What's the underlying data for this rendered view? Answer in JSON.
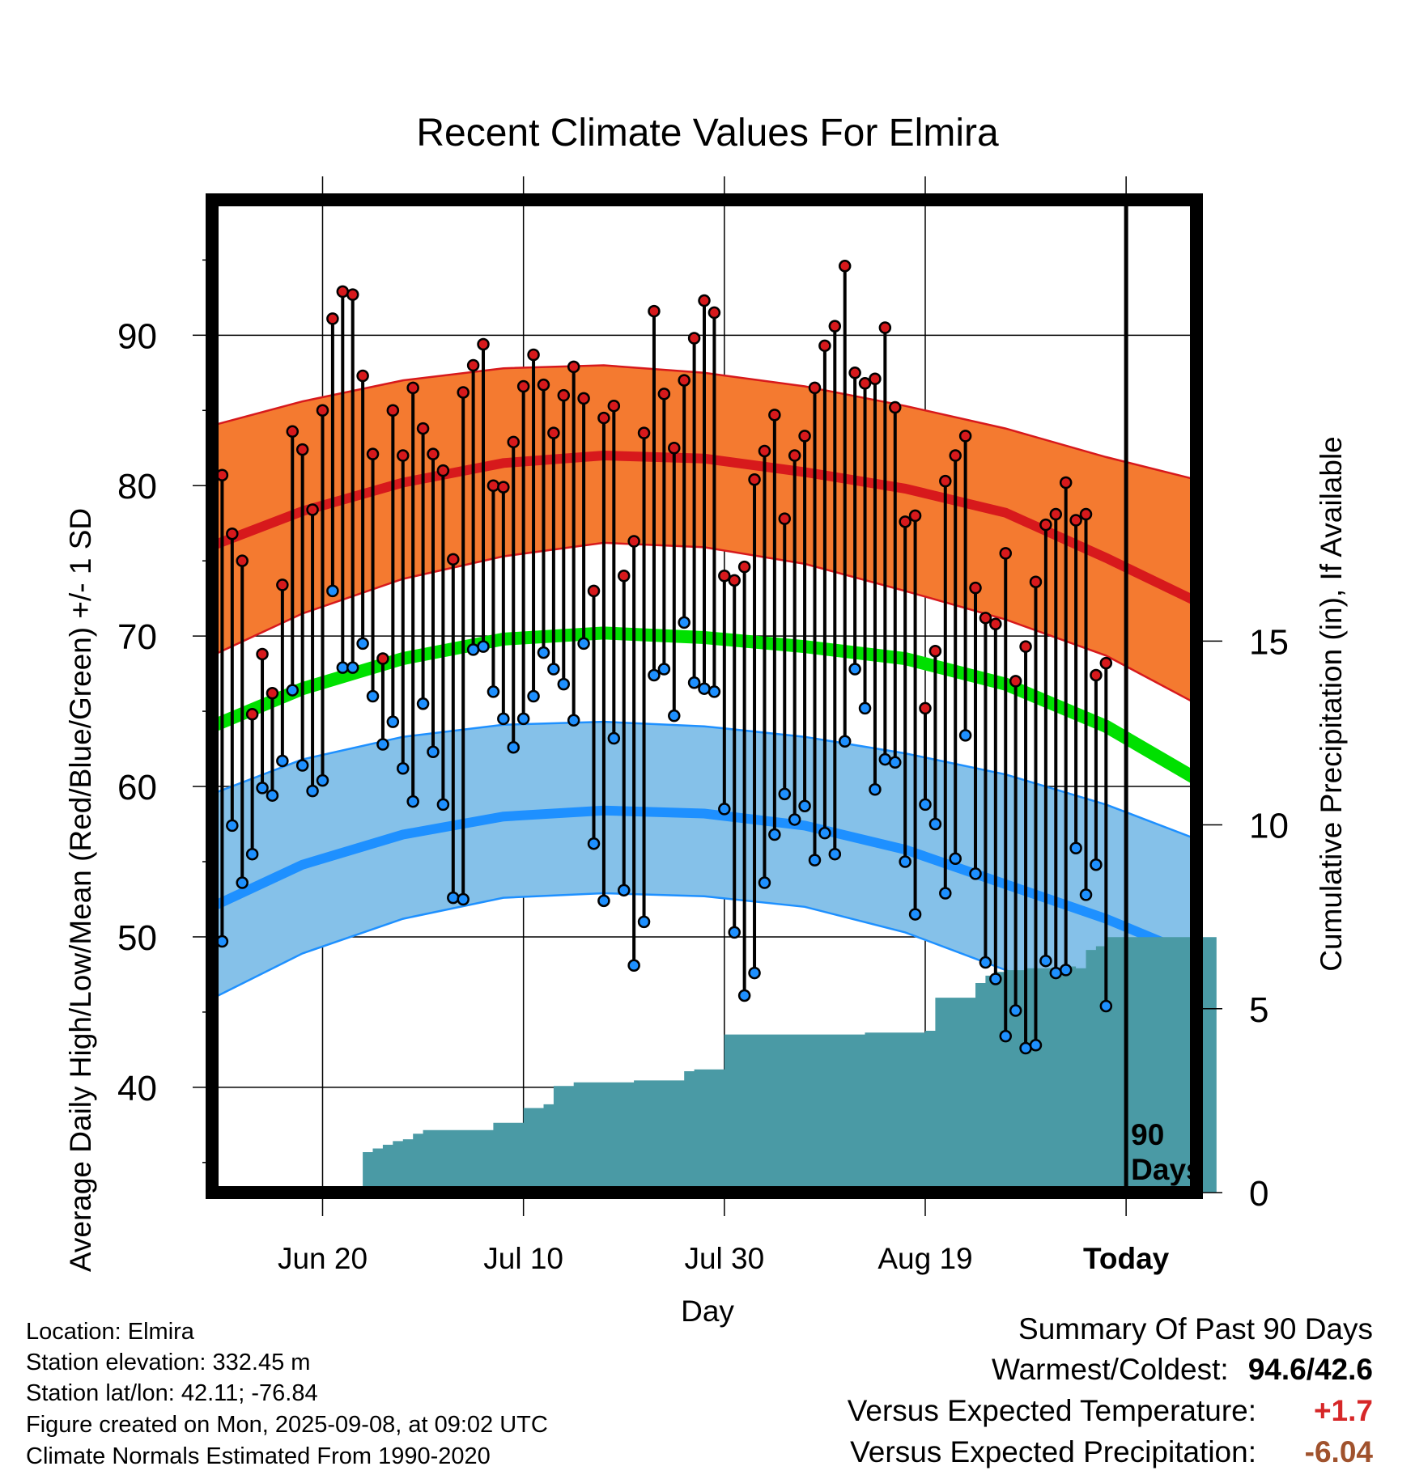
{
  "colors": {
    "high": "#d7191c",
    "low": "#1e90ff",
    "mean": "#00e000",
    "high_band": "#f47a30",
    "low_band": "#85c1e9",
    "precip": "#4a9aa5"
  },
  "chart_data": {
    "type": "line",
    "title": "Recent Climate Values For Elmira",
    "xlabel": "Day",
    "ylabel": "Average Daily High/Low/Mean (Red/Blue/Green) +/- 1 SD",
    "y2label": "Cumulative Precipitation (in), If Available",
    "ylim": [
      33,
      99
    ],
    "y2lim": [
      0,
      27
    ],
    "xlim": [
      -89,
      9
    ],
    "y_ticks": [
      40,
      50,
      60,
      70,
      80,
      90
    ],
    "y2_ticks": [
      0,
      5,
      10,
      15
    ],
    "x_ticks": [
      {
        "day": -78,
        "label": "Jun 20"
      },
      {
        "day": -58,
        "label": "Jul 10"
      },
      {
        "day": -38,
        "label": "Jul 30"
      },
      {
        "day": -18,
        "label": "Aug 19"
      },
      {
        "day": 2,
        "label": "Today"
      }
    ],
    "today_marker": {
      "day": 2,
      "label_line1": "90",
      "label_line2": "Days"
    },
    "normals": {
      "x": [
        -89,
        -80,
        -70,
        -60,
        -50,
        -40,
        -30,
        -20,
        -10,
        0,
        9
      ],
      "high_mean": [
        76.0,
        78.3,
        80.2,
        81.5,
        82.0,
        81.8,
        80.9,
        79.8,
        78.2,
        75.2,
        72.3
      ],
      "high_upper": [
        84.0,
        85.6,
        87.0,
        87.8,
        88.0,
        87.5,
        86.6,
        85.3,
        83.8,
        81.9,
        80.4
      ],
      "high_lower": [
        68.7,
        71.5,
        73.8,
        75.3,
        76.2,
        75.9,
        74.8,
        73.0,
        71.1,
        68.7,
        65.5
      ],
      "low_mean": [
        52.0,
        54.8,
        56.8,
        58.0,
        58.4,
        58.2,
        57.4,
        55.8,
        53.5,
        51.2,
        48.7
      ],
      "low_upper": [
        59.5,
        61.8,
        63.3,
        64.1,
        64.3,
        64.0,
        63.3,
        62.2,
        60.8,
        58.8,
        56.5
      ],
      "low_lower": [
        45.9,
        48.9,
        51.2,
        52.6,
        52.9,
        52.7,
        52.0,
        50.3,
        47.8,
        45.0,
        42.2
      ],
      "mean": [
        64.0,
        66.5,
        68.5,
        69.8,
        70.2,
        69.9,
        69.3,
        68.5,
        66.8,
        64.0,
        60.5
      ]
    },
    "daily": {
      "start_day": -89,
      "high": [
        76.0,
        80.7,
        76.8,
        75.0,
        64.8,
        68.8,
        66.2,
        73.4,
        83.6,
        82.4,
        78.4,
        85.0,
        91.1,
        92.9,
        92.7,
        87.3,
        82.1,
        68.5,
        85.0,
        82.0,
        86.5,
        83.8,
        82.1,
        81.0,
        75.1,
        86.2,
        88.0,
        89.4,
        80.0,
        79.9,
        82.9,
        86.6,
        88.7,
        86.7,
        83.5,
        86.0,
        87.9,
        85.8,
        73.0,
        84.5,
        85.3,
        74.0,
        76.3,
        83.5,
        91.6,
        86.1,
        82.5,
        87.0,
        89.8,
        92.3,
        91.5,
        74.0,
        73.7,
        74.6,
        80.4,
        82.3,
        84.7,
        77.8,
        82.0,
        83.3,
        86.5,
        89.3,
        90.6,
        94.6,
        87.5,
        86.8,
        87.1,
        90.5,
        85.2,
        77.6,
        78.0,
        65.2,
        69.0,
        80.3,
        82.0,
        83.3,
        73.2,
        71.2,
        70.8,
        75.5,
        67.0,
        69.3,
        73.6,
        77.4,
        78.1,
        80.2,
        77.7,
        78.1,
        67.4,
        68.2
      ],
      "low": [
        56.5,
        49.7,
        57.4,
        53.6,
        55.5,
        59.9,
        59.4,
        61.7,
        66.4,
        61.4,
        59.7,
        60.4,
        73.0,
        67.9,
        67.9,
        69.5,
        66.0,
        62.8,
        64.3,
        61.2,
        59.0,
        65.5,
        62.3,
        58.8,
        52.6,
        52.5,
        69.1,
        69.3,
        66.3,
        64.5,
        62.6,
        64.5,
        66.0,
        68.9,
        67.8,
        66.8,
        64.4,
        69.5,
        56.2,
        52.4,
        63.2,
        53.1,
        48.1,
        51.0,
        67.4,
        67.8,
        64.7,
        70.9,
        66.9,
        66.5,
        66.3,
        58.5,
        50.3,
        46.1,
        47.6,
        53.6,
        56.8,
        59.5,
        57.8,
        58.7,
        55.1,
        56.9,
        55.5,
        63.0,
        67.8,
        65.2,
        59.8,
        61.8,
        61.6,
        55.0,
        51.5,
        58.8,
        57.5,
        52.9,
        55.2,
        63.4,
        54.2,
        48.3,
        47.2,
        43.4,
        45.1,
        42.6,
        42.8,
        48.4,
        47.6,
        47.8,
        55.9,
        52.8,
        54.8,
        45.4
      ]
    },
    "cumulative_precip": [
      0,
      0,
      0,
      0,
      0,
      0,
      0,
      0,
      0,
      0,
      0,
      0.05,
      0.05,
      0.05,
      0.05,
      1.1,
      1.2,
      1.3,
      1.4,
      1.45,
      1.6,
      1.7,
      1.7,
      1.7,
      1.7,
      1.7,
      1.7,
      1.7,
      1.9,
      1.9,
      1.9,
      2.3,
      2.3,
      2.4,
      2.9,
      2.9,
      3.0,
      3.0,
      3.0,
      3.0,
      3.0,
      3.0,
      3.05,
      3.05,
      3.05,
      3.05,
      3.05,
      3.3,
      3.35,
      3.35,
      3.35,
      4.3,
      4.3,
      4.3,
      4.3,
      4.3,
      4.3,
      4.3,
      4.3,
      4.3,
      4.3,
      4.3,
      4.3,
      4.3,
      4.3,
      4.35,
      4.35,
      4.35,
      4.35,
      4.35,
      4.35,
      4.4,
      5.3,
      5.3,
      5.3,
      5.3,
      5.7,
      5.9,
      6.0,
      6.05,
      6.05,
      6.1,
      6.1,
      6.1,
      6.1,
      6.15,
      6.1,
      6.6,
      6.7,
      6.95,
      6.95,
      6.95,
      6.95,
      6.95,
      6.95,
      6.95,
      6.95,
      6.95,
      6.95,
      6.95
    ]
  },
  "footer": {
    "location": "Location: Elmira",
    "elevation": "Station elevation: 332.45 m",
    "latlon": "Station lat/lon: 42.11; -76.84",
    "created": "Figure created on Mon, 2025-09-08, at 09:02 UTC",
    "normals": "Climate Normals Estimated From 1990-2020"
  },
  "summary": {
    "heading": "Summary Of Past 90 Days",
    "warm_cold_label": "Warmest/Coldest:",
    "warm_cold_value": "94.6/42.6",
    "temp_label": "Versus Expected Temperature:",
    "temp_value": "+1.7",
    "temp_color": "#d62728",
    "precip_label": "Versus Expected Precipitation:",
    "precip_value": "-6.04",
    "precip_color": "#a0522d"
  }
}
